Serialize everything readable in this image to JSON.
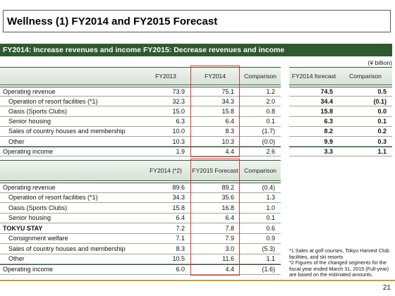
{
  "header": {
    "title": "Wellness (1) FY2014 and FY2015 Forecast",
    "subtitle": "FY2014: Increase revenues and income FY2015: Decrease revenues and income",
    "unit": "(¥ billion)"
  },
  "table1": {
    "columns": [
      "FY2013",
      "FY2014",
      "Comparison"
    ],
    "rows": [
      [
        "Operating revenue",
        "73.9",
        "75.1",
        "1.2"
      ],
      [
        "Operation of resort facilities (*1)",
        "32.3",
        "34.3",
        "2.0"
      ],
      [
        "Oasis (Sports Clubs)",
        "15.0",
        "15.8",
        "0.8"
      ],
      [
        "Senior housing",
        "6.3",
        "6.4",
        "0.1"
      ],
      [
        "Sales of country houses and membership",
        "10.0",
        "8.3",
        "(1.7)"
      ],
      [
        "Other",
        "10.3",
        "10.3",
        "(0.0)"
      ],
      [
        "Operating income",
        "1.9",
        "4.4",
        "2.6"
      ]
    ]
  },
  "table2": {
    "columns": [
      "FY2014 forecast",
      "Comparison"
    ],
    "rows": [
      [
        "74.5",
        "0.5"
      ],
      [
        "34.4",
        "(0.1)"
      ],
      [
        "15.8",
        "0.0"
      ],
      [
        "6.3",
        "0.1"
      ],
      [
        "8.2",
        "0.2"
      ],
      [
        "9.9",
        "0.3"
      ],
      [
        "3.3",
        "1.1"
      ]
    ]
  },
  "table3": {
    "columns": [
      "FY2014 (*2)",
      "FY2015 Forecast",
      "Comparison"
    ],
    "rows": [
      [
        "Operating revenue",
        "89.6",
        "89.2",
        "(0.4)"
      ],
      [
        "Operation of resort facilities (*1)",
        "34.3",
        "35.6",
        "1.3"
      ],
      [
        "Oasis (Sports Clubs)",
        "15.8",
        "16.8",
        "1.0"
      ],
      [
        "Senior housing",
        "6.4",
        "6.4",
        "0.1"
      ],
      [
        "TOKYU STAY",
        "7.2",
        "7.8",
        "0.6"
      ],
      [
        "Consignment welfare",
        "7.1",
        "7.9",
        "0.9"
      ],
      [
        "Sales of country houses and membership",
        "8.3",
        "3.0",
        "(5.3)"
      ],
      [
        "Other",
        "10.5",
        "11.6",
        "1.1"
      ],
      [
        "Operating income",
        "6.0",
        "4.4",
        "(1.6)"
      ]
    ]
  },
  "notes": [
    "*1 Sales at golf courses, Tokyu Harvest Club facilities, and ski resorts",
    "*2 Figures of the changed segments for the fiscal year ended March 31, 2015 (Full-year) are based on the estimated amounts."
  ],
  "page_number": "21"
}
